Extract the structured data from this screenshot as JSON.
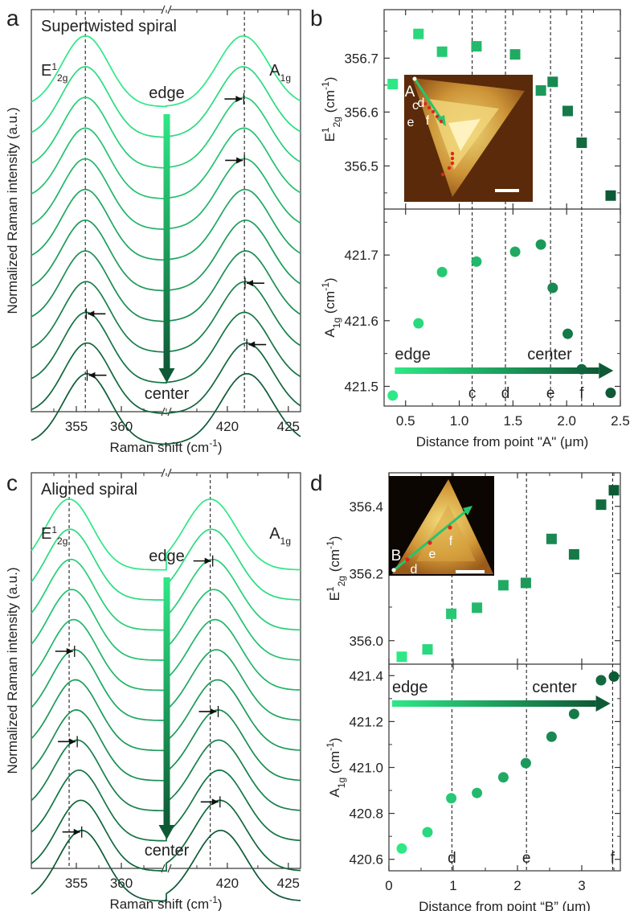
{
  "colors": {
    "light": "#2ee886",
    "dark": "#0e5a36",
    "inset_bg": "#5a2a0a",
    "inset_flake": "#d9a441",
    "spot": "#e0241c"
  },
  "chart_data": [
    {
      "panel": "a",
      "type": "line",
      "title": "Supertwisted spiral",
      "xlabel": "Raman shift (cm-1)",
      "ylabel": "Normalized Raman intensity (a.u.)",
      "x_axis_break": true,
      "x_ranges": [
        [
          350,
          365
        ],
        [
          415,
          426
        ]
      ],
      "x_ticks": [
        355,
        360,
        420,
        425
      ],
      "peak_labels": [
        "E12g",
        "A1g"
      ],
      "reference_lines": [
        356.0,
        421.4
      ],
      "n_spectra": 12,
      "arrow_top_label": "edge",
      "arrow_bottom_label": "center",
      "e_peak_positions": [
        356.0,
        356.0,
        356.0,
        356.0,
        356.0,
        356.0,
        356.0,
        356.0,
        356.1,
        356.1,
        356.2,
        356.2
      ],
      "a_peak_positions": [
        421.3,
        421.3,
        421.35,
        421.35,
        421.4,
        421.45,
        421.5,
        421.5,
        421.45,
        421.4,
        421.6,
        421.6
      ],
      "arrows": [
        {
          "peak": "A1g",
          "spectrum": 2,
          "direction": "right"
        },
        {
          "peak": "A1g",
          "spectrum": 4,
          "direction": "right"
        },
        {
          "peak": "A1g",
          "spectrum": 8,
          "direction": "left"
        },
        {
          "peak": "A1g",
          "spectrum": 10,
          "direction": "left"
        },
        {
          "peak": "E12g",
          "spectrum": 9,
          "direction": "left"
        },
        {
          "peak": "E12g",
          "spectrum": 11,
          "direction": "left"
        }
      ]
    },
    {
      "panel": "b",
      "type": "scatter",
      "xlabel": "Distance from point \"A\" (μm)",
      "x_range": [
        0.3,
        2.5
      ],
      "x_ticks": [
        0.5,
        1.0,
        1.5,
        2.0,
        2.5
      ],
      "vlines": [
        {
          "x": 1.12,
          "label": "c"
        },
        {
          "x": 1.43,
          "label": "d"
        },
        {
          "x": 1.85,
          "label": "e"
        },
        {
          "x": 2.14,
          "label": "f"
        }
      ],
      "top": {
        "ylabel": "E12g (cm-1)",
        "ylim": [
          356.42,
          356.79
        ],
        "y_ticks": [
          356.5,
          356.6,
          356.7
        ],
        "marker": "square",
        "x": [
          0.38,
          0.62,
          0.84,
          1.16,
          1.52,
          1.76,
          1.87,
          2.01,
          2.14,
          2.41
        ],
        "y": [
          356.652,
          356.745,
          356.712,
          356.722,
          356.707,
          356.64,
          356.656,
          356.602,
          356.543,
          356.445
        ]
      },
      "bottom": {
        "ylabel": "A1g (cm-1)",
        "ylim": [
          421.47,
          421.77
        ],
        "y_ticks": [
          421.5,
          421.6,
          421.7
        ],
        "marker": "circle",
        "x": [
          0.38,
          0.62,
          0.84,
          1.16,
          1.52,
          1.76,
          1.87,
          2.01,
          2.14,
          2.41
        ],
        "y": [
          421.486,
          421.596,
          421.674,
          421.69,
          421.705,
          421.716,
          421.65,
          421.58,
          421.526,
          421.49
        ],
        "arrow_start_label": "edge",
        "arrow_end_label": "center"
      },
      "inset": {
        "start_label": "A",
        "point_labels": [
          "c",
          "d",
          "e",
          "f"
        ]
      }
    },
    {
      "panel": "c",
      "type": "line",
      "title": "Aligned spiral",
      "xlabel": "Raman shift (cm-1)",
      "ylabel": "Normalized Raman intensity (a.u.)",
      "x_axis_break": true,
      "x_ranges": [
        [
          350,
          365
        ],
        [
          415,
          426
        ]
      ],
      "x_ticks": [
        355,
        360,
        420,
        425
      ],
      "peak_labels": [
        "E12g",
        "A1g"
      ],
      "reference_lines": [
        354.2,
        418.6
      ],
      "n_spectra": 12,
      "arrow_top_label": "edge",
      "arrow_bottom_label": "center",
      "e_peak_positions": [
        354.2,
        354.3,
        354.4,
        354.5,
        354.7,
        354.8,
        354.9,
        355.0,
        355.1,
        355.3,
        355.5,
        355.6
      ],
      "a_peak_positions": [
        418.6,
        418.7,
        418.8,
        418.9,
        419.0,
        419.1,
        419.2,
        419.25,
        419.3,
        419.35,
        419.4,
        419.45
      ],
      "arrows": [
        {
          "peak": "A1g",
          "spectrum": 2,
          "direction": "right"
        },
        {
          "peak": "A1g",
          "spectrum": 7,
          "direction": "right"
        },
        {
          "peak": "A1g",
          "spectrum": 10,
          "direction": "right"
        },
        {
          "peak": "E12g",
          "spectrum": 5,
          "direction": "right"
        },
        {
          "peak": "E12g",
          "spectrum": 8,
          "direction": "right"
        },
        {
          "peak": "E12g",
          "spectrum": 11,
          "direction": "right"
        }
      ]
    },
    {
      "panel": "d",
      "type": "scatter",
      "xlabel": "Distance from point “B” (μm)",
      "x_range": [
        0,
        3.6
      ],
      "x_ticks": [
        0,
        1,
        2,
        3
      ],
      "vlines": [
        {
          "x": 0.98,
          "label": "d"
        },
        {
          "x": 2.14,
          "label": "e"
        },
        {
          "x": 3.48,
          "label": "f"
        }
      ],
      "top": {
        "ylabel": "E12g (cm-1)",
        "ylim": [
          355.93,
          356.5
        ],
        "y_ticks": [
          356.0,
          356.2,
          356.4
        ],
        "marker": "square",
        "x": [
          0.2,
          0.6,
          0.97,
          1.37,
          1.78,
          2.13,
          2.53,
          2.88,
          3.3,
          3.5
        ],
        "y": [
          355.952,
          355.974,
          356.08,
          356.098,
          356.165,
          356.172,
          356.303,
          356.257,
          356.405,
          356.448
        ]
      },
      "bottom": {
        "ylabel": "A1g (cm-1)",
        "ylim": [
          420.55,
          421.45
        ],
        "y_ticks": [
          420.6,
          420.8,
          421.0,
          421.2,
          421.4
        ],
        "marker": "circle",
        "x": [
          0.2,
          0.6,
          0.97,
          1.37,
          1.78,
          2.13,
          2.53,
          2.88,
          3.3,
          3.5
        ],
        "y": [
          420.647,
          420.718,
          420.866,
          420.889,
          420.957,
          421.019,
          421.134,
          421.233,
          421.38,
          421.396
        ],
        "arrow_start_label": "edge",
        "arrow_end_label": "center"
      },
      "inset": {
        "start_label": "B",
        "point_labels": [
          "d",
          "e",
          "f"
        ]
      }
    }
  ]
}
